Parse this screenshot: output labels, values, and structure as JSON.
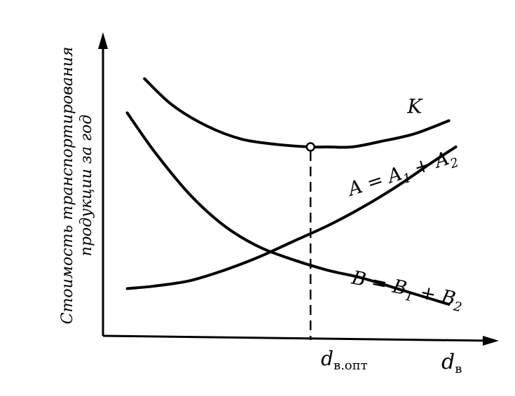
{
  "chart_data": {
    "type": "line",
    "title": "",
    "ylabel_line1": "Стоимость транспортирования",
    "ylabel_line2": "продукции за год",
    "xlabel": "d",
    "xlabel_sub": "в",
    "xopt_label": "d",
    "xopt_sub": "в.опт",
    "series": [
      {
        "name": "K",
        "label_parts": [
          {
            "t": "K",
            "sub": false
          }
        ],
        "x": [
          0.12,
          0.2,
          0.3,
          0.4,
          0.5,
          0.6,
          0.65,
          0.72,
          0.8,
          0.9,
          1.0
        ],
        "y": [
          0.86,
          0.76,
          0.68,
          0.63,
          0.61,
          0.6,
          0.6,
          0.6,
          0.62,
          0.65,
          0.7
        ]
      },
      {
        "name": "A = A1 + A2",
        "label_parts": [
          {
            "t": "A = A",
            "sub": false
          },
          {
            "t": "1",
            "sub": true
          },
          {
            "t": " + A",
            "sub": false
          },
          {
            "t": "2",
            "sub": true
          }
        ],
        "x": [
          0.07,
          0.15,
          0.25,
          0.35,
          0.45,
          0.55,
          0.65,
          0.75,
          0.85,
          0.95,
          1.02
        ],
        "y": [
          0.06,
          0.07,
          0.09,
          0.13,
          0.18,
          0.24,
          0.3,
          0.37,
          0.45,
          0.54,
          0.6
        ]
      },
      {
        "name": "B = B1 + B2",
        "label_parts": [
          {
            "t": "B = B",
            "sub": false
          },
          {
            "t": "1",
            "sub": true
          },
          {
            "t": " + B",
            "sub": false
          },
          {
            "t": "2",
            "sub": true
          }
        ],
        "x": [
          0.07,
          0.15,
          0.25,
          0.35,
          0.45,
          0.55,
          0.65,
          0.75,
          0.85,
          0.95,
          1.0
        ],
        "y": [
          0.73,
          0.58,
          0.42,
          0.3,
          0.22,
          0.17,
          0.13,
          0.1,
          0.06,
          0.02,
          0.0
        ]
      }
    ],
    "optimum": {
      "x": 0.6,
      "y": 0.6
    },
    "xlim": [
      0,
      1.1
    ],
    "ylim": [
      -0.12,
      1.0
    ],
    "grid": false
  }
}
